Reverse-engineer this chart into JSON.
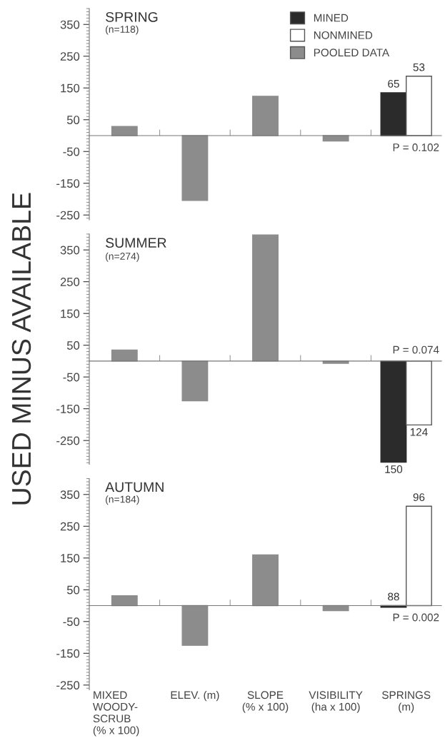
{
  "chart_data": [
    {
      "type": "bar",
      "title": "SPRING",
      "subtitle": "(n=118)",
      "categories": [
        "MIXED\nWOODY-\nSCRUB\n(% x 100)",
        "ELEV. (m)",
        "SLOPE\n(% x 100)",
        "VISIBILITY\n(ha x 100)",
        "SPRINGS\n(m)"
      ],
      "series": [
        {
          "name": "MINED",
          "color": "#2b2b2b",
          "values": [
            null,
            null,
            null,
            null,
            135
          ]
        },
        {
          "name": "NONMINED",
          "color": "#ffffff",
          "values": [
            null,
            null,
            null,
            null,
            187
          ]
        },
        {
          "name": "POOLED DATA",
          "color": "#8c8c8c",
          "values": [
            29,
            -204,
            124,
            -17,
            null
          ]
        }
      ],
      "ylim": [
        -265,
        400
      ],
      "yticks": [
        -250,
        -150,
        -50,
        50,
        150,
        250,
        350
      ],
      "legend": "top right",
      "tick_labels": "y",
      "annotations": [
        {
          "text": "65",
          "x": "SPRINGS\n(m)",
          "y": 135
        },
        {
          "text": "53",
          "x": "SPRINGS\n(m)",
          "y": 187
        },
        "P = 0.102"
      ]
    },
    {
      "type": "bar",
      "title": "SUMMER",
      "subtitle": "(n=274)",
      "ylabel": "USED MINUS AVAILABLE",
      "categories": [
        "MIXED\nWOODY-\nSCRUB\n(% x 100)",
        "ELEV. (m)",
        "SLOPE\n(% x 100)",
        "VISIBILITY\n(ha x 100)",
        "SPRINGS\n(m)"
      ],
      "series": [
        {
          "color": "#2b2b2b",
          "values": [
            null,
            null,
            null,
            null,
            -318
          ]
        },
        {
          "color": "#ffffff",
          "values": [
            null,
            null,
            null,
            null,
            -201
          ]
        },
        {
          "color": "#8c8c8c",
          "values": [
            35,
            -125,
            397,
            -7,
            null
          ]
        }
      ],
      "ylim": [
        -325,
        400
      ],
      "yticks": [
        -250,
        -150,
        -50,
        50,
        150,
        250,
        350
      ],
      "legend": false,
      "tick_labels": "y",
      "annotations": [
        {
          "text": "150",
          "x": "SPRINGS\n(m)",
          "y": -318
        },
        {
          "text": "124",
          "x": "SPRINGS\n(m)",
          "y": -201
        },
        "P = 0.074"
      ]
    },
    {
      "type": "bar",
      "title": "AUTUMN",
      "subtitle": "(n=184)",
      "categories": [
        "MIXED\nWOODY-\nSCRUB\n(% x 100)",
        "ELEV. (m)",
        "SLOPE\n(% x 100)",
        "VISIBILITY\n(ha x 100)",
        "SPRINGS\n(m)"
      ],
      "series": [
        {
          "color": "#2b2b2b",
          "values": [
            null,
            null,
            null,
            null,
            -5
          ]
        },
        {
          "color": "#ffffff",
          "values": [
            null,
            null,
            null,
            null,
            313
          ]
        },
        {
          "color": "#8c8c8c",
          "values": [
            31,
            -125,
            160,
            -16,
            null
          ]
        }
      ],
      "ylim": [
        -265,
        400
      ],
      "yticks": [
        -250,
        -150,
        -50,
        50,
        150,
        250,
        350
      ],
      "legend": false,
      "annotations": [
        {
          "text": "88",
          "x": "SPRINGS\n(m)",
          "y": -5
        },
        {
          "text": "96",
          "x": "SPRINGS\n(m)",
          "y": 313
        },
        "P = 0.002"
      ]
    }
  ]
}
